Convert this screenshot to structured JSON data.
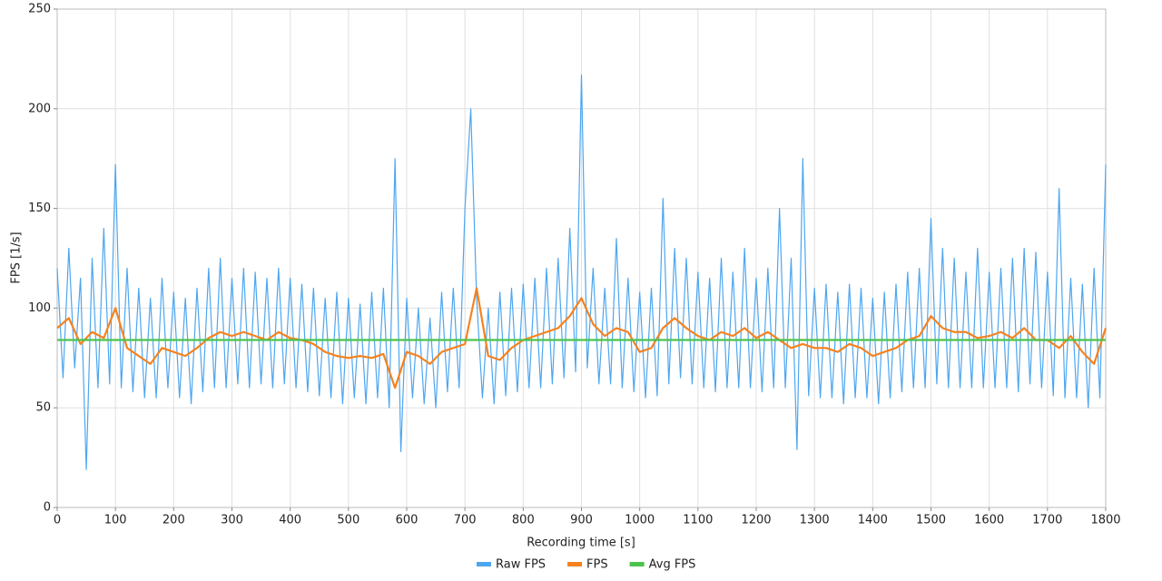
{
  "chart_data": {
    "type": "line",
    "xlabel": "Recording time [s]",
    "ylabel": "FPS [1/s]",
    "xlim": [
      0,
      1800
    ],
    "xticks": [
      0,
      100,
      200,
      300,
      400,
      500,
      600,
      700,
      800,
      900,
      1000,
      1100,
      1200,
      1300,
      1400,
      1500,
      1600,
      1700,
      1800
    ],
    "ylim": [
      0,
      250
    ],
    "yticks": [
      0,
      50,
      100,
      150,
      200,
      250
    ],
    "grid": true,
    "legend": "bottom",
    "series": [
      {
        "name": "Raw FPS",
        "color": "#4da6f0",
        "x": [
          0,
          10,
          20,
          30,
          40,
          50,
          60,
          70,
          80,
          90,
          100,
          110,
          120,
          130,
          140,
          150,
          160,
          170,
          180,
          190,
          200,
          210,
          220,
          230,
          240,
          250,
          260,
          270,
          280,
          290,
          300,
          310,
          320,
          330,
          340,
          350,
          360,
          370,
          380,
          390,
          400,
          410,
          420,
          430,
          440,
          450,
          460,
          470,
          480,
          490,
          500,
          510,
          520,
          530,
          540,
          550,
          560,
          570,
          580,
          590,
          600,
          610,
          620,
          630,
          640,
          650,
          660,
          670,
          680,
          690,
          700,
          710,
          720,
          730,
          740,
          750,
          760,
          770,
          780,
          790,
          800,
          810,
          820,
          830,
          840,
          850,
          860,
          870,
          880,
          890,
          900,
          910,
          920,
          930,
          940,
          950,
          960,
          970,
          980,
          990,
          1000,
          1010,
          1020,
          1030,
          1040,
          1050,
          1060,
          1070,
          1080,
          1090,
          1100,
          1110,
          1120,
          1130,
          1140,
          1150,
          1160,
          1170,
          1180,
          1190,
          1200,
          1210,
          1220,
          1230,
          1240,
          1250,
          1260,
          1270,
          1280,
          1290,
          1300,
          1310,
          1320,
          1330,
          1340,
          1350,
          1360,
          1370,
          1380,
          1390,
          1400,
          1410,
          1420,
          1430,
          1440,
          1450,
          1460,
          1470,
          1480,
          1490,
          1500,
          1510,
          1520,
          1530,
          1540,
          1550,
          1560,
          1570,
          1580,
          1590,
          1600,
          1610,
          1620,
          1630,
          1640,
          1650,
          1660,
          1670,
          1680,
          1690,
          1700,
          1710,
          1720,
          1730,
          1740,
          1750,
          1760,
          1770,
          1780,
          1790,
          1800
        ],
        "values": [
          120,
          65,
          130,
          70,
          115,
          19,
          125,
          60,
          140,
          62,
          172,
          60,
          120,
          58,
          110,
          55,
          105,
          55,
          115,
          60,
          108,
          55,
          105,
          52,
          110,
          58,
          120,
          60,
          125,
          60,
          115,
          62,
          120,
          60,
          118,
          62,
          115,
          60,
          120,
          62,
          115,
          60,
          112,
          58,
          110,
          56,
          105,
          55,
          108,
          52,
          105,
          55,
          102,
          52,
          108,
          55,
          110,
          50,
          175,
          28,
          105,
          55,
          100,
          52,
          95,
          50,
          108,
          58,
          110,
          60,
          150,
          200,
          105,
          55,
          100,
          52,
          108,
          56,
          110,
          58,
          112,
          60,
          115,
          60,
          120,
          62,
          125,
          65,
          140,
          68,
          217,
          70,
          120,
          62,
          110,
          62,
          135,
          60,
          115,
          58,
          108,
          55,
          110,
          56,
          155,
          62,
          130,
          65,
          125,
          62,
          118,
          60,
          115,
          58,
          125,
          60,
          118,
          60,
          130,
          60,
          115,
          58,
          120,
          60,
          150,
          60,
          125,
          29,
          175,
          56,
          110,
          55,
          112,
          55,
          108,
          52,
          112,
          55,
          110,
          55,
          105,
          52,
          108,
          55,
          112,
          58,
          118,
          60,
          120,
          60,
          145,
          62,
          130,
          60,
          125,
          60,
          118,
          60,
          130,
          60,
          118,
          60,
          120,
          60,
          125,
          58,
          130,
          62,
          128,
          60,
          118,
          56,
          160,
          55,
          115,
          55,
          112,
          50,
          120,
          55,
          172
        ]
      },
      {
        "name": "FPS",
        "color": "#f5821f",
        "x": [
          0,
          20,
          40,
          60,
          80,
          100,
          120,
          140,
          160,
          180,
          200,
          220,
          240,
          260,
          280,
          300,
          320,
          340,
          360,
          380,
          400,
          420,
          440,
          460,
          480,
          500,
          520,
          540,
          560,
          580,
          600,
          620,
          640,
          660,
          680,
          700,
          720,
          740,
          760,
          780,
          800,
          820,
          840,
          860,
          880,
          900,
          920,
          940,
          960,
          980,
          1000,
          1020,
          1040,
          1060,
          1080,
          1100,
          1120,
          1140,
          1160,
          1180,
          1200,
          1220,
          1240,
          1260,
          1280,
          1300,
          1320,
          1340,
          1360,
          1380,
          1400,
          1420,
          1440,
          1460,
          1480,
          1500,
          1520,
          1540,
          1560,
          1580,
          1600,
          1620,
          1640,
          1660,
          1680,
          1700,
          1720,
          1740,
          1760,
          1780,
          1800
        ],
        "values": [
          90,
          95,
          82,
          88,
          85,
          100,
          80,
          76,
          72,
          80,
          78,
          76,
          80,
          85,
          88,
          86,
          88,
          86,
          84,
          88,
          85,
          84,
          82,
          78,
          76,
          75,
          76,
          75,
          77,
          60,
          78,
          76,
          72,
          78,
          80,
          82,
          110,
          76,
          74,
          80,
          84,
          86,
          88,
          90,
          96,
          105,
          92,
          86,
          90,
          88,
          78,
          80,
          90,
          95,
          90,
          86,
          84,
          88,
          86,
          90,
          85,
          88,
          84,
          80,
          82,
          80,
          80,
          78,
          82,
          80,
          76,
          78,
          80,
          84,
          86,
          96,
          90,
          88,
          88,
          85,
          86,
          88,
          85,
          90,
          84,
          84,
          80,
          86,
          78,
          72,
          90
        ]
      },
      {
        "name": "Avg FPS",
        "color": "#4cc34c",
        "x": [
          0,
          1800
        ],
        "values": [
          84,
          84
        ]
      }
    ]
  }
}
